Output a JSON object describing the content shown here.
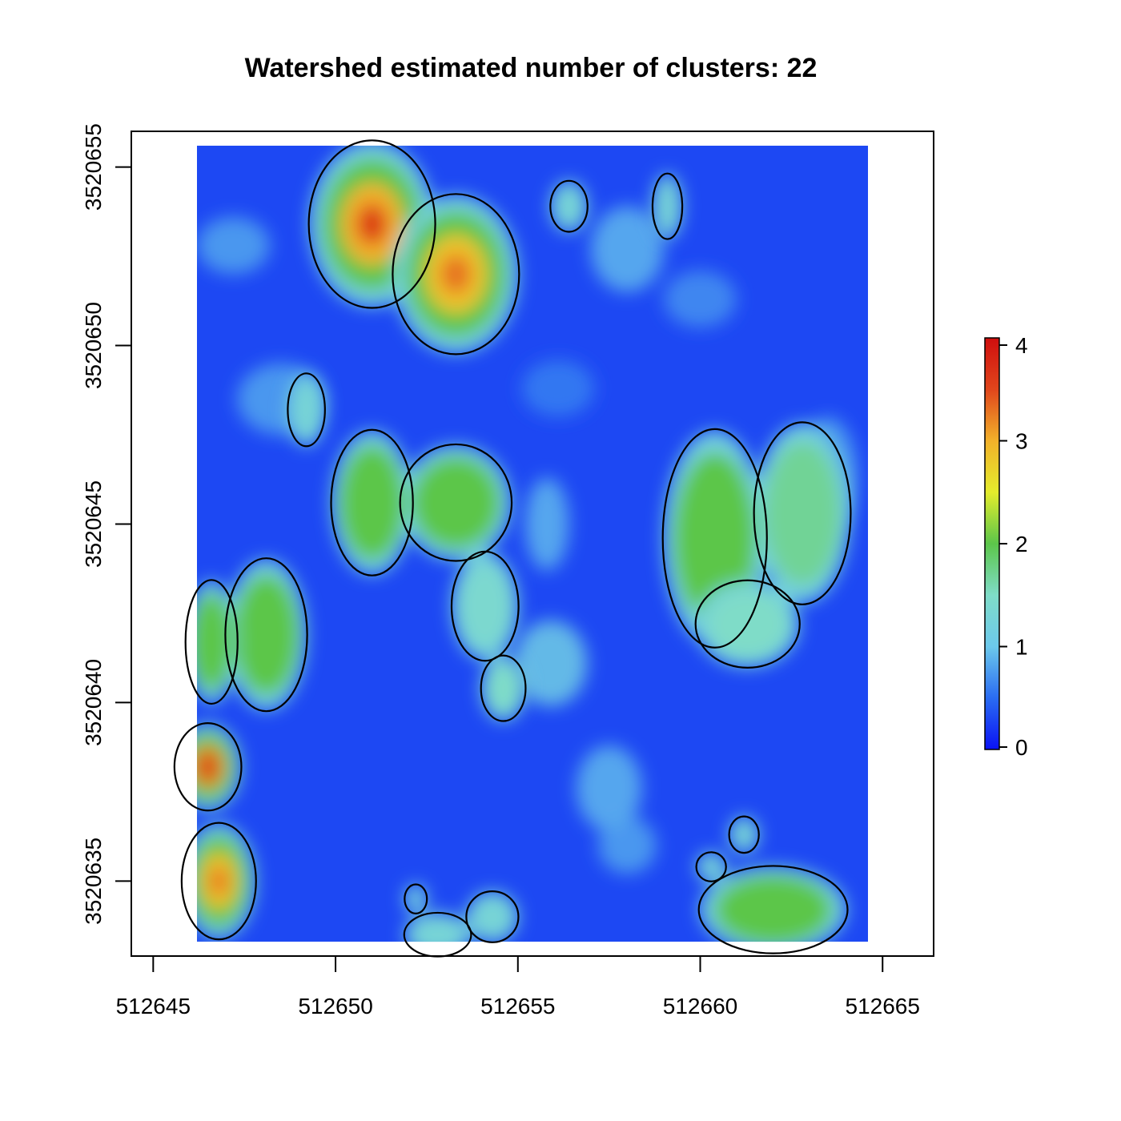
{
  "chart_data": {
    "type": "heatmap",
    "title": "Watershed estimated number of clusters: 22",
    "xlabel": "",
    "ylabel": "",
    "x_range": [
      512646.2,
      512664.6
    ],
    "y_range": [
      3520633.3,
      3520655.6
    ],
    "xlim": [
      512644.4,
      512666.4
    ],
    "ylim": [
      3520632.9,
      3520656.0
    ],
    "x_ticks": [
      512645,
      512650,
      512655,
      512660,
      512665
    ],
    "y_ticks": [
      3520635,
      3520640,
      3520645,
      3520650,
      3520655
    ],
    "x_tick_labels": [
      "512645",
      "512650",
      "512655",
      "512660",
      "512665"
    ],
    "y_tick_labels": [
      "3520635",
      "3520640",
      "3520645",
      "3520650",
      "3520655"
    ],
    "legend": {
      "position": "right",
      "range": [
        0,
        4
      ],
      "ticks": [
        0,
        1,
        2,
        3,
        4
      ],
      "tick_labels": [
        "0",
        "1",
        "2",
        "3",
        "4"
      ],
      "colors": [
        "#0a12f5",
        "#2a6cf2",
        "#6cc9ec",
        "#7fdcc8",
        "#5cc64a",
        "#e4ec2c",
        "#f2b12a",
        "#e0461c",
        "#d00e0e"
      ]
    },
    "background_value": 0.3,
    "clusters": [
      {
        "id": 1,
        "x": 512651.0,
        "y": 3520653.4,
        "peak": 3.6,
        "rx": 1.7,
        "ry": 2.3
      },
      {
        "id": 2,
        "x": 512653.3,
        "y": 3520652.0,
        "peak": 3.3,
        "rx": 1.7,
        "ry": 2.2
      },
      {
        "id": 3,
        "x": 512653.3,
        "y": 3520645.6,
        "peak": 2.0,
        "rx": 1.5,
        "ry": 1.6
      },
      {
        "id": 4,
        "x": 512654.1,
        "y": 3520642.7,
        "peak": 1.4,
        "rx": 0.9,
        "ry": 1.5
      },
      {
        "id": 5,
        "x": 512651.0,
        "y": 3520645.6,
        "peak": 2.0,
        "rx": 1.1,
        "ry": 2.0
      },
      {
        "id": 6,
        "x": 512648.1,
        "y": 3520641.9,
        "peak": 2.1,
        "rx": 1.1,
        "ry": 2.1
      },
      {
        "id": 7,
        "x": 512646.6,
        "y": 3520641.7,
        "peak": 2.0,
        "rx": 0.7,
        "ry": 1.7
      },
      {
        "id": 8,
        "x": 512646.5,
        "y": 3520638.2,
        "peak": 4.0,
        "rx": 0.9,
        "ry": 1.2
      },
      {
        "id": 9,
        "x": 512646.8,
        "y": 3520635.0,
        "peak": 3.3,
        "rx": 1.0,
        "ry": 1.6
      },
      {
        "id": 10,
        "x": 512660.4,
        "y": 3520644.6,
        "peak": 2.0,
        "rx": 1.4,
        "ry": 3.0
      },
      {
        "id": 11,
        "x": 512662.8,
        "y": 3520645.3,
        "peak": 1.7,
        "rx": 1.3,
        "ry": 2.5
      },
      {
        "id": 12,
        "x": 512661.3,
        "y": 3520642.2,
        "peak": 1.5,
        "rx": 1.4,
        "ry": 1.2
      },
      {
        "id": 13,
        "x": 512662.0,
        "y": 3520634.2,
        "peak": 2.0,
        "rx": 2.0,
        "ry": 1.2
      },
      {
        "id": 14,
        "x": 512654.6,
        "y": 3520640.4,
        "peak": 1.5,
        "rx": 0.6,
        "ry": 0.9
      },
      {
        "id": 15,
        "x": 512656.4,
        "y": 3520653.9,
        "peak": 1.3,
        "rx": 0.5,
        "ry": 0.7
      },
      {
        "id": 16,
        "x": 512659.1,
        "y": 3520653.9,
        "peak": 1.3,
        "rx": 0.4,
        "ry": 0.9
      },
      {
        "id": 17,
        "x": 512649.2,
        "y": 3520648.2,
        "peak": 1.3,
        "rx": 0.5,
        "ry": 1.0
      },
      {
        "id": 18,
        "x": 512652.8,
        "y": 3520633.5,
        "peak": 1.3,
        "rx": 0.9,
        "ry": 0.6
      },
      {
        "id": 19,
        "x": 512654.3,
        "y": 3520634.0,
        "peak": 1.3,
        "rx": 0.7,
        "ry": 0.7
      },
      {
        "id": 20,
        "x": 512661.2,
        "y": 3520636.3,
        "peak": 1.3,
        "rx": 0.4,
        "ry": 0.5
      },
      {
        "id": 21,
        "x": 512660.3,
        "y": 3520635.4,
        "peak": 1.3,
        "rx": 0.4,
        "ry": 0.4
      },
      {
        "id": 22,
        "x": 512652.2,
        "y": 3520634.5,
        "peak": 1.2,
        "rx": 0.3,
        "ry": 0.4
      }
    ],
    "background_patches": [
      {
        "x": 512655.9,
        "y": 3520641.1,
        "value": 1.1,
        "rx": 1.0,
        "ry": 1.2
      },
      {
        "x": 512657.5,
        "y": 3520637.6,
        "value": 0.9,
        "rx": 0.9,
        "ry": 1.2
      },
      {
        "x": 512658.0,
        "y": 3520652.7,
        "value": 0.9,
        "rx": 1.0,
        "ry": 1.2
      },
      {
        "x": 512647.2,
        "y": 3520652.8,
        "value": 0.8,
        "rx": 1.0,
        "ry": 0.8
      },
      {
        "x": 512655.8,
        "y": 3520645.0,
        "value": 0.9,
        "rx": 0.6,
        "ry": 1.3
      },
      {
        "x": 512663.5,
        "y": 3520646.4,
        "value": 0.8,
        "rx": 0.8,
        "ry": 1.6
      },
      {
        "x": 512648.5,
        "y": 3520648.5,
        "value": 0.8,
        "rx": 1.2,
        "ry": 1.0
      },
      {
        "x": 512660.0,
        "y": 3520651.3,
        "value": 0.7,
        "rx": 1.0,
        "ry": 0.8
      },
      {
        "x": 512656.1,
        "y": 3520648.8,
        "value": 0.6,
        "rx": 1.0,
        "ry": 0.8
      },
      {
        "x": 512658.0,
        "y": 3520636.0,
        "value": 0.8,
        "rx": 0.8,
        "ry": 0.8
      }
    ]
  }
}
